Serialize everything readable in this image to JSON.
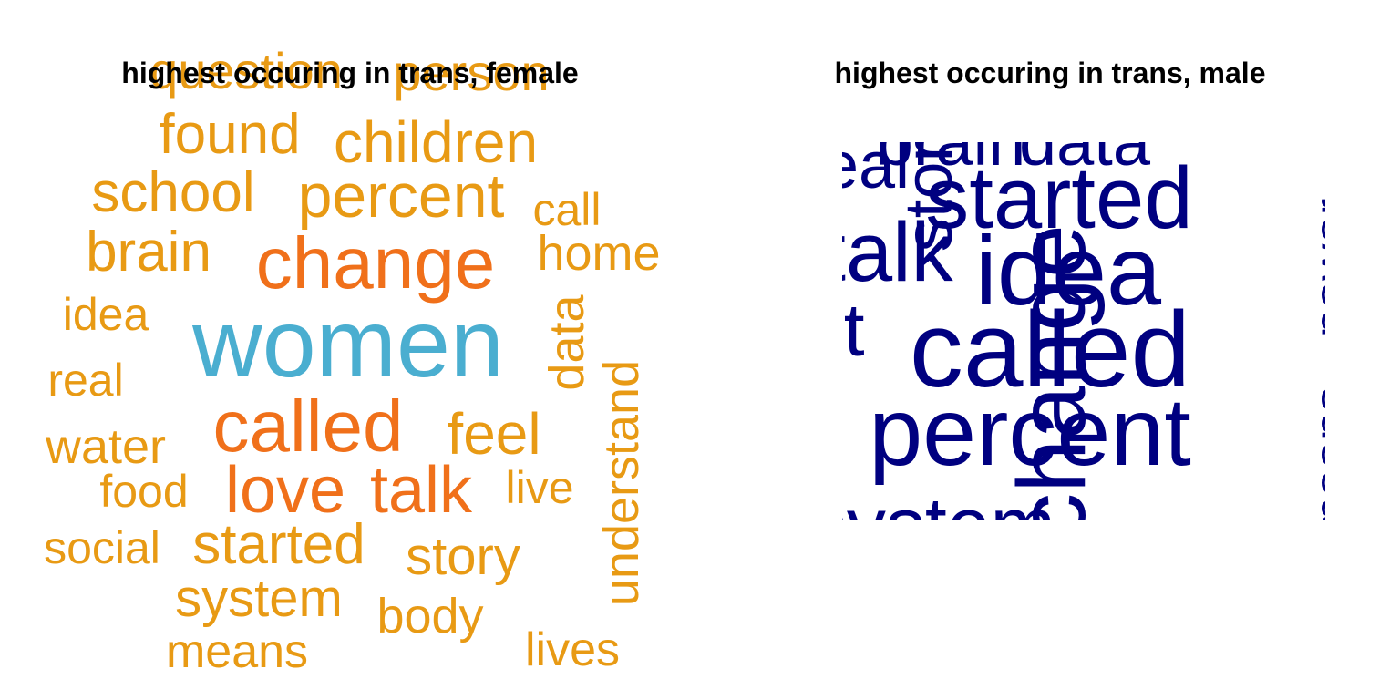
{
  "chart_data": [
    {
      "type": "wordcloud",
      "title": "highest occuring in trans, female",
      "colors": {
        "low": "#e89a14",
        "mid": "#f0701a",
        "high": "#4aaed0"
      },
      "words": [
        {
          "text": "women",
          "weight": 10,
          "color": "#4aaed0",
          "rotate": 0
        },
        {
          "text": "change",
          "weight": 6,
          "color": "#f0701a",
          "rotate": 0
        },
        {
          "text": "called",
          "weight": 6,
          "color": "#f0701a",
          "rotate": 0
        },
        {
          "text": "love",
          "weight": 5,
          "color": "#f0701a",
          "rotate": 0
        },
        {
          "text": "talk",
          "weight": 5,
          "color": "#f0701a",
          "rotate": 0
        },
        {
          "text": "percent",
          "weight": 4,
          "color": "#e89a14",
          "rotate": 0
        },
        {
          "text": "children",
          "weight": 4,
          "color": "#e89a14",
          "rotate": 0
        },
        {
          "text": "found",
          "weight": 4,
          "color": "#e89a14",
          "rotate": 0
        },
        {
          "text": "school",
          "weight": 4,
          "color": "#e89a14",
          "rotate": 0
        },
        {
          "text": "brain",
          "weight": 4,
          "color": "#e89a14",
          "rotate": 0
        },
        {
          "text": "feel",
          "weight": 4,
          "color": "#e89a14",
          "rotate": 0
        },
        {
          "text": "started",
          "weight": 4,
          "color": "#e89a14",
          "rotate": 0
        },
        {
          "text": "question",
          "weight": 3,
          "color": "#e89a14",
          "rotate": 0
        },
        {
          "text": "person",
          "weight": 3,
          "color": "#e89a14",
          "rotate": 0
        },
        {
          "text": "home",
          "weight": 3,
          "color": "#e89a14",
          "rotate": 0
        },
        {
          "text": "data",
          "weight": 3,
          "color": "#e89a14",
          "rotate": -90
        },
        {
          "text": "understand",
          "weight": 3,
          "color": "#e89a14",
          "rotate": -90
        },
        {
          "text": "story",
          "weight": 3,
          "color": "#e89a14",
          "rotate": 0
        },
        {
          "text": "system",
          "weight": 3,
          "color": "#e89a14",
          "rotate": 0
        },
        {
          "text": "water",
          "weight": 3,
          "color": "#e89a14",
          "rotate": 0
        },
        {
          "text": "idea",
          "weight": 2,
          "color": "#e89a14",
          "rotate": 0
        },
        {
          "text": "call",
          "weight": 2,
          "color": "#e89a14",
          "rotate": 0
        },
        {
          "text": "real",
          "weight": 2,
          "color": "#e89a14",
          "rotate": 0
        },
        {
          "text": "food",
          "weight": 2,
          "color": "#e89a14",
          "rotate": 0
        },
        {
          "text": "live",
          "weight": 2,
          "color": "#e89a14",
          "rotate": 0
        },
        {
          "text": "social",
          "weight": 2,
          "color": "#e89a14",
          "rotate": 0
        },
        {
          "text": "body",
          "weight": 2,
          "color": "#e89a14",
          "rotate": 0
        },
        {
          "text": "means",
          "weight": 2,
          "color": "#e89a14",
          "rotate": 0
        },
        {
          "text": "lives",
          "weight": 2,
          "color": "#e89a14",
          "rotate": 0
        }
      ]
    },
    {
      "type": "wordcloud",
      "title": "highest occuring in trans, male",
      "colors": {
        "all": "#000080"
      },
      "words": [
        {
          "text": "called",
          "weight": 10,
          "color": "#000080",
          "rotate": 0
        },
        {
          "text": "percent",
          "weight": 9,
          "color": "#000080",
          "rotate": 0
        },
        {
          "text": "idea",
          "weight": 8,
          "color": "#000080",
          "rotate": 0
        },
        {
          "text": "change",
          "weight": 8,
          "color": "#000080",
          "rotate": -90
        },
        {
          "text": "started",
          "weight": 7,
          "color": "#000080",
          "rotate": 0
        },
        {
          "text": "talk",
          "weight": 7,
          "color": "#000080",
          "rotate": 0
        },
        {
          "text": "brain",
          "weight": 6,
          "color": "#000080",
          "rotate": 0
        },
        {
          "text": "data",
          "weight": 6,
          "color": "#000080",
          "rotate": 0
        },
        {
          "text": "system",
          "weight": 6,
          "color": "#000080",
          "rotate": 0
        },
        {
          "text": "story",
          "weight": 5,
          "color": "#000080",
          "rotate": -90
        },
        {
          "text": "real",
          "weight": 5,
          "color": "#000080",
          "rotate": 0
        },
        {
          "text": "it",
          "weight": 5,
          "color": "#000080",
          "rotate": 0
        },
        {
          "text": "power",
          "weight": 4,
          "color": "#000080",
          "rotate": -90
        },
        {
          "text": "means",
          "weight": 4,
          "color": "#000080",
          "rotate": -90
        }
      ]
    }
  ]
}
